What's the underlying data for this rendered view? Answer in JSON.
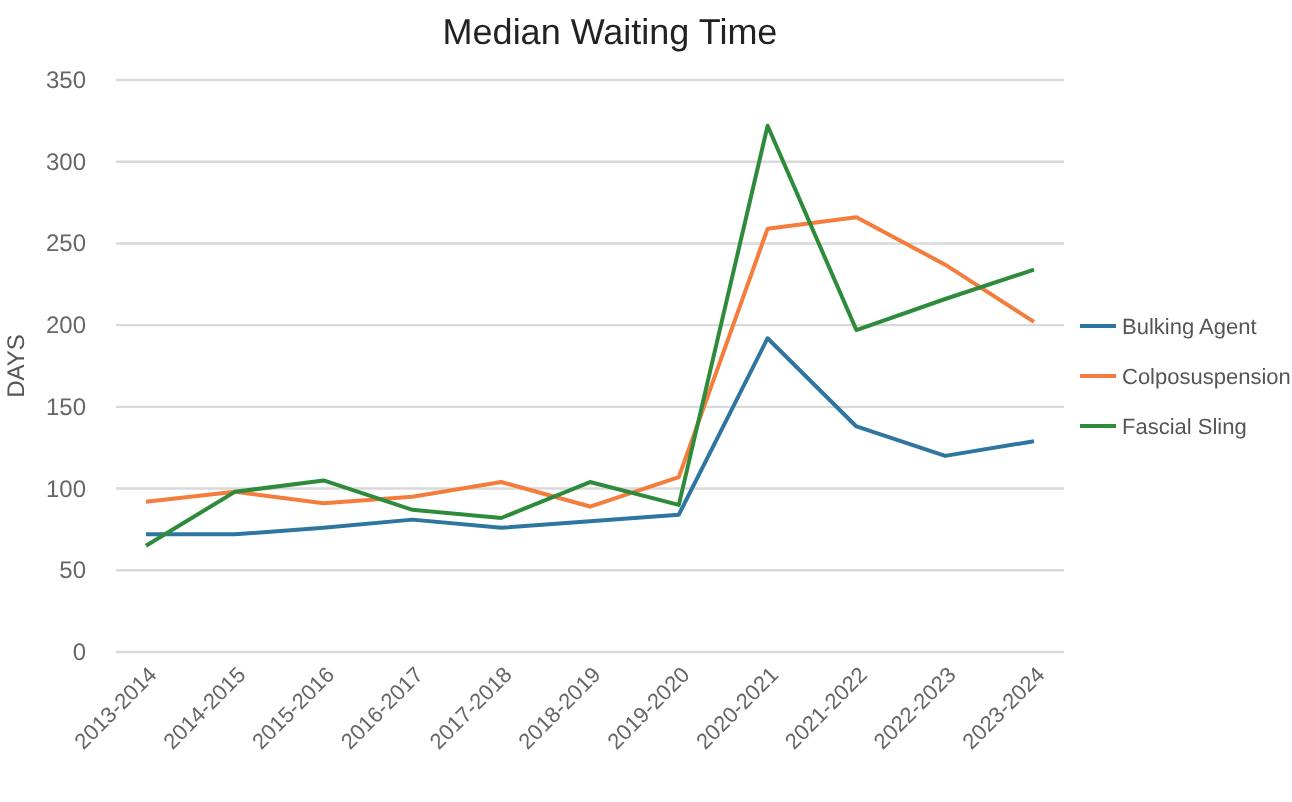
{
  "chart_data": {
    "type": "line",
    "title": "Median Waiting Time",
    "ylabel": "DAYS",
    "categories": [
      "2013-2014",
      "2014-2015",
      "2015-2016",
      "2016-2017",
      "2017-2018",
      "2018-2019",
      "2019-2020",
      "2020-2021",
      "2021-2022",
      "2022-2023",
      "2023-2024"
    ],
    "series": [
      {
        "name": "Bulking Agent",
        "color": "#2e75a0",
        "values": [
          72,
          72,
          76,
          81,
          76,
          80,
          84,
          192,
          138,
          120,
          129
        ]
      },
      {
        "name": "Colposuspension",
        "color": "#f47c3c",
        "values": [
          92,
          98,
          91,
          95,
          104,
          89,
          107,
          259,
          266,
          237,
          202
        ]
      },
      {
        "name": "Fascial Sling",
        "color": "#2e8b3c",
        "values": [
          65,
          98,
          105,
          87,
          82,
          104,
          90,
          322,
          197,
          216,
          234
        ]
      }
    ],
    "ylim": [
      0,
      350
    ],
    "yticks": [
      0,
      50,
      100,
      150,
      200,
      250,
      300,
      350
    ],
    "grid": "y",
    "legend": "right",
    "marker": "none",
    "line_style": "solid"
  }
}
